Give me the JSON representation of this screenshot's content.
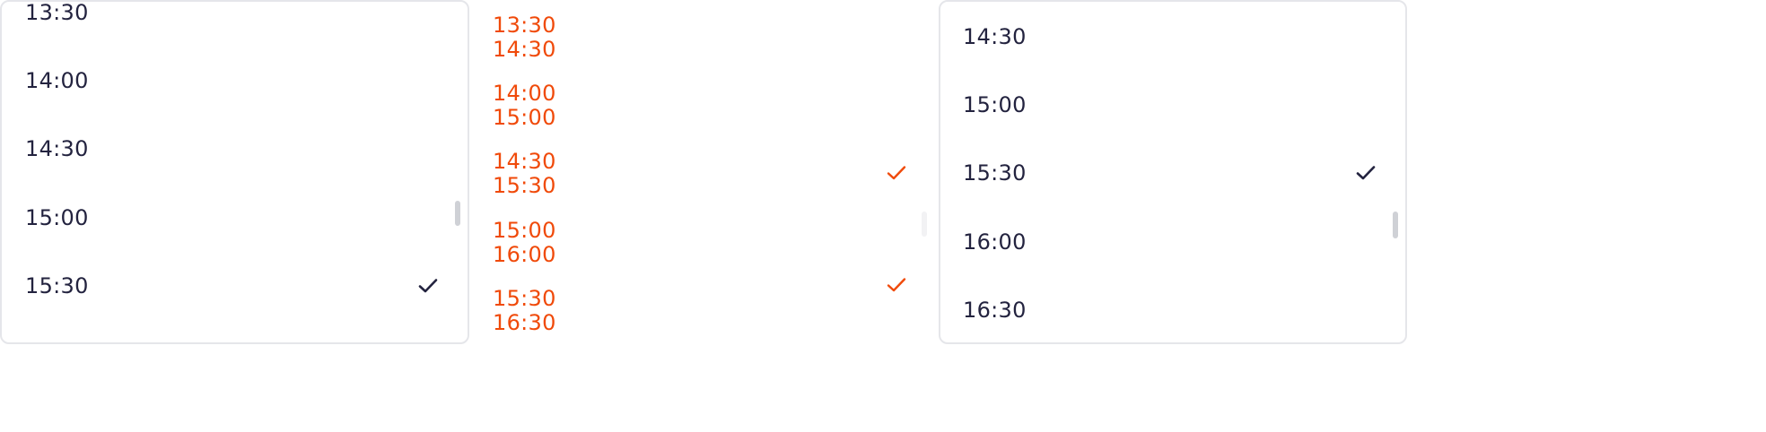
{
  "single_list": {
    "items": [
      {
        "label": "13:30",
        "selected": false
      },
      {
        "label": "14:00",
        "selected": false
      },
      {
        "label": "14:30",
        "selected": false
      },
      {
        "label": "15:00",
        "selected": false
      },
      {
        "label": "15:30",
        "selected": true
      }
    ]
  },
  "range_list": {
    "items": [
      {
        "start": "13:30",
        "end": "14:30",
        "selected": false
      },
      {
        "start": "14:00",
        "end": "15:00",
        "selected": false
      },
      {
        "start": "14:30",
        "end": "15:30",
        "selected": true
      },
      {
        "start": "15:00",
        "end": "16:00",
        "selected": false
      },
      {
        "start": "15:30",
        "end": "16:30",
        "selected": true
      }
    ]
  },
  "scroll_list": {
    "items": [
      {
        "label": "14:30",
        "selected": false
      },
      {
        "label": "15:00",
        "selected": false
      },
      {
        "label": "15:30",
        "selected": true
      },
      {
        "label": "16:00",
        "selected": false
      },
      {
        "label": "16:30",
        "selected": false
      }
    ]
  },
  "icons": {
    "check": "check-icon"
  },
  "colors": {
    "text": "#23233f",
    "accent": "#f04a0a",
    "border": "#e5e6ea",
    "scrollbar": "#cfd1d6"
  }
}
